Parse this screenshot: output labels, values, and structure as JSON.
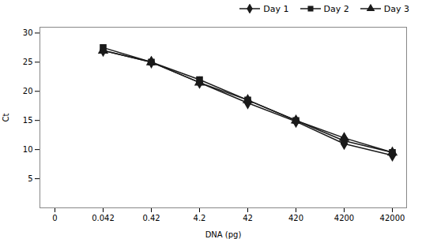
{
  "chart_data": {
    "type": "line",
    "categories": [
      "0",
      "0.042",
      "0.42",
      "4.2",
      "42",
      "420",
      "4200",
      "42000"
    ],
    "series": [
      {
        "name": "Day 1",
        "color": "#1a1a1a",
        "marker": "diamond",
        "values": [
          null,
          27.0,
          25.0,
          21.5,
          18.0,
          14.8,
          11.0,
          9.0
        ]
      },
      {
        "name": "Day 2",
        "color": "#1a1a1a",
        "marker": "square",
        "values": [
          null,
          27.5,
          25.0,
          22.0,
          18.5,
          15.0,
          11.5,
          9.5
        ]
      },
      {
        "name": "Day 3",
        "color": "#1a1a1a",
        "marker": "triangle",
        "values": [
          null,
          27.0,
          25.0,
          21.5,
          18.5,
          15.0,
          12.0,
          9.5
        ]
      }
    ],
    "xlabel": "DNA (pg)",
    "ylabel": "Ct",
    "ylim": [
      0,
      31
    ],
    "yticks": [
      5,
      10,
      15,
      20,
      25,
      30
    ],
    "legend": "upper right"
  }
}
